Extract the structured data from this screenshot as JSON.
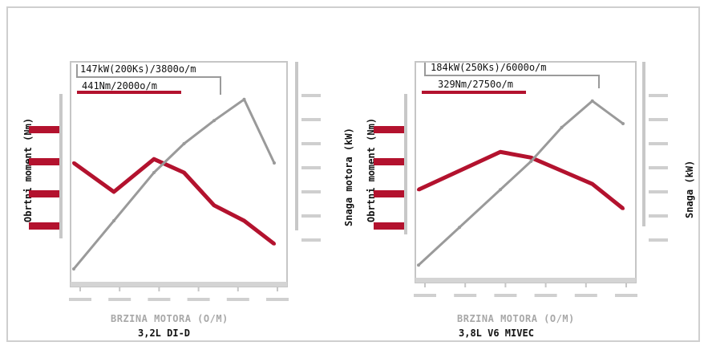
{
  "chart_data": [
    {
      "type": "line",
      "title": "3,2L DI-D",
      "xlabel": "BRZINA MOTORA (O/M)",
      "ylabel_left": "Obrtni moment (Nm)",
      "ylabel_right": "Snaga motora (kW)",
      "annotations": [
        "147kW(200Ks)/3800o/m",
        "441Nm/2000o/m"
      ],
      "x": [
        0,
        0.2,
        0.4,
        0.55,
        0.7,
        0.85,
        1.0
      ],
      "series": [
        {
          "name": "Obrtni moment (Nm)",
          "color": "#b3122e",
          "values": [
            0.6,
            0.45,
            0.62,
            0.55,
            0.38,
            0.3,
            0.18
          ]
        },
        {
          "name": "Snaga motora (kW)",
          "color": "#9a9a9a",
          "values": [
            0.05,
            0.3,
            0.55,
            0.7,
            0.82,
            0.93,
            0.6
          ]
        }
      ],
      "grid": false
    },
    {
      "type": "line",
      "title": "3,8L V6 MIVEC",
      "xlabel": "BRZINA MOTORA (O/M)",
      "ylabel_left": "Obrtni moment (Nm)",
      "ylabel_right": "Snaga (kW)",
      "annotations": [
        "184kW(250Ks)/6000o/m",
        "329Nm/2750o/m"
      ],
      "x": [
        0,
        0.2,
        0.4,
        0.55,
        0.7,
        0.85,
        1.0
      ],
      "series": [
        {
          "name": "Obrtni moment (Nm)",
          "color": "#b3122e",
          "values": [
            0.45,
            0.55,
            0.65,
            0.62,
            0.55,
            0.48,
            0.35
          ]
        },
        {
          "name": "Snaga (kW)",
          "color": "#9a9a9a",
          "values": [
            0.05,
            0.25,
            0.45,
            0.6,
            0.78,
            0.92,
            0.8
          ]
        }
      ],
      "grid": false
    }
  ]
}
